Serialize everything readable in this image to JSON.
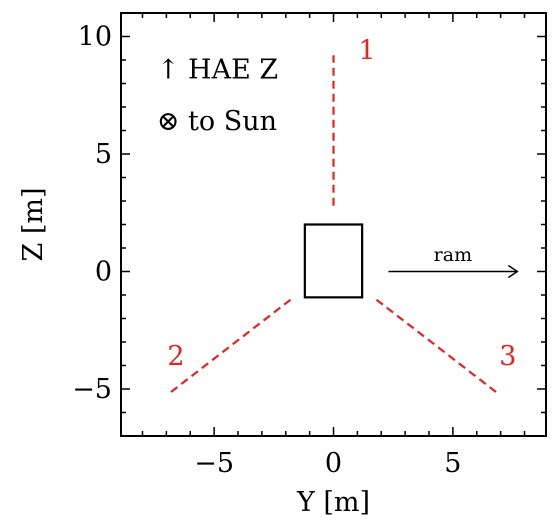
{
  "chart_data": {
    "type": "line",
    "title": "",
    "xlabel": "Y [m]",
    "ylabel": "Z [m]",
    "xlim": [
      -8.9,
      8.9
    ],
    "ylim": [
      -7,
      11
    ],
    "xticks": [
      -5,
      0,
      5
    ],
    "yticks": [
      -5,
      0,
      5,
      10
    ],
    "xtick_labels": [
      "−5",
      "0",
      "5"
    ],
    "ytick_labels": [
      "−5",
      "0",
      "5",
      "10"
    ],
    "x_minor_step": 1,
    "y_minor_step": 1,
    "grid": false,
    "spacecraft_body": {
      "y": [
        -1.2,
        1.2
      ],
      "z": [
        -1.1,
        2.0
      ],
      "color": "#000000"
    },
    "booms": [
      {
        "name": "1",
        "x": [
          0,
          0
        ],
        "y": [
          2.8,
          9.2
        ],
        "color": "#e8231f",
        "style": "dashed",
        "label_at": [
          1.4,
          9.4
        ]
      },
      {
        "name": "2",
        "x": [
          -1.8,
          -6.9
        ],
        "y": [
          -1.2,
          -5.2
        ],
        "color": "#e8231f",
        "style": "dashed",
        "label_at": [
          -6.6,
          -3.6
        ]
      },
      {
        "name": "3",
        "x": [
          1.8,
          6.9
        ],
        "y": [
          -1.2,
          -5.2
        ],
        "color": "#e8231f",
        "style": "dashed",
        "label_at": [
          7.3,
          -3.6
        ]
      }
    ],
    "annotations": [
      {
        "text": "↑ HAE Z",
        "at": [
          -7.4,
          8.6
        ]
      },
      {
        "text": "⊗ to Sun",
        "at": [
          -7.4,
          6.4
        ]
      }
    ],
    "ram_arrow": {
      "label": "ram",
      "from": [
        2.3,
        0
      ],
      "to": [
        7.7,
        0
      ],
      "label_at": [
        5.0,
        0.45
      ]
    }
  }
}
